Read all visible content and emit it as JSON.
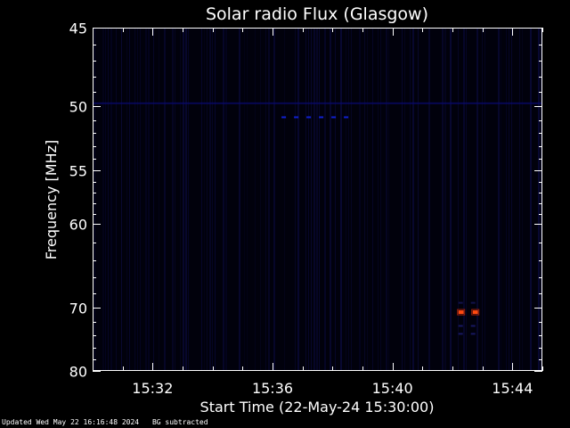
{
  "chart_data": {
    "type": "heatmap",
    "title": "Solar radio Flux (Glasgow)",
    "xlabel": "Start Time (22-May-24 15:30:00)",
    "ylabel": "Frequency [MHz]",
    "x_ticks": [
      "15:32",
      "15:36",
      "15:40",
      "15:44"
    ],
    "x_tick_minutes": [
      2,
      6,
      10,
      14
    ],
    "xlim_minutes": [
      0,
      15
    ],
    "y_ticks": [
      45,
      50,
      55,
      60,
      70,
      80
    ],
    "ylim": [
      45,
      80
    ],
    "scale": "reciprocal",
    "grid": false,
    "features": [
      {
        "name": "50 MHz background line",
        "freq": 49.8,
        "t_start": 0.0,
        "t_end": 15.0,
        "color": "#0a0a70",
        "intensity": 0.4
      },
      {
        "name": "51 MHz dashes",
        "freq": 50.8,
        "t_start": 6.3,
        "t_end": 8.6,
        "color": "#1020d0",
        "intensity": 0.8
      },
      {
        "name": "70.5 MHz burst",
        "freq": 70.6,
        "t_start": 12.2,
        "t_end": 13.1,
        "color": "#ff4a10",
        "intensity": 1.0
      },
      {
        "name": "69 MHz faint",
        "freq": 69.3,
        "t_start": 12.2,
        "t_end": 13.1,
        "color": "#12124a",
        "intensity": 0.3
      },
      {
        "name": "72.5 MHz faint",
        "freq": 72.6,
        "t_start": 12.2,
        "t_end": 13.1,
        "color": "#181860",
        "intensity": 0.35
      },
      {
        "name": "73.5 MHz faint",
        "freq": 73.8,
        "t_start": 12.2,
        "t_end": 13.1,
        "color": "#181860",
        "intensity": 0.35
      }
    ]
  },
  "footer": {
    "updated": "Updated Wed May 22 16:16:48 2024",
    "note": "BG subtracted"
  },
  "colors": {
    "background": "#000000",
    "plot_bg": "#01010c",
    "axis": "#ffffff"
  }
}
